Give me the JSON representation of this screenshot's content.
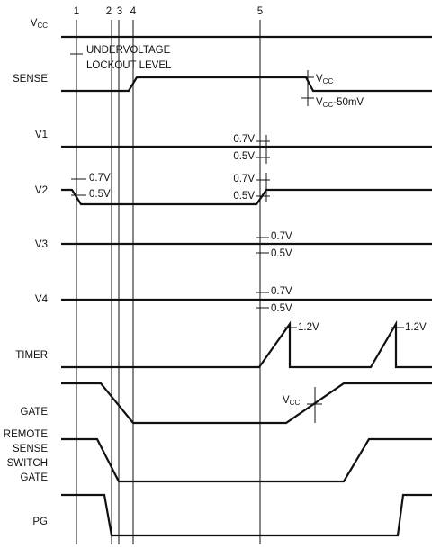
{
  "markers": [
    "1",
    "2",
    "3",
    "4",
    "5"
  ],
  "signals": [
    {
      "label": "V",
      "label_sub": "CC"
    },
    {
      "label": "SENSE"
    },
    {
      "label": "V1"
    },
    {
      "label": "V2"
    },
    {
      "label": "V3"
    },
    {
      "label": "V4"
    },
    {
      "label": "TIMER"
    },
    {
      "label": "GATE"
    },
    {
      "label_lines": [
        "REMOTE",
        "SENSE",
        "SWITCH",
        "GATE"
      ]
    },
    {
      "label": "PG"
    }
  ],
  "annotations": {
    "uvlo": [
      "UNDERVOLTAGE",
      "LOCKOUT LEVEL"
    ],
    "sense_high": {
      "main": "V",
      "sub": "CC"
    },
    "sense_low": {
      "main": "V",
      "sub": "CC",
      "suffix": "-50mV"
    },
    "v1_thresholds": [
      "0.7V",
      "0.5V"
    ],
    "v2_left_thresholds": [
      "0.7V",
      "0.5V"
    ],
    "v2_right_thresholds": [
      "0.7V",
      "0.5V"
    ],
    "v3_thresholds": [
      "0.7V",
      "0.5V"
    ],
    "v4_thresholds": [
      "0.7V",
      "0.5V"
    ],
    "timer_levels": [
      "1.2V",
      "1.2V"
    ],
    "gate_level": {
      "main": "V",
      "sub": "CC"
    }
  }
}
